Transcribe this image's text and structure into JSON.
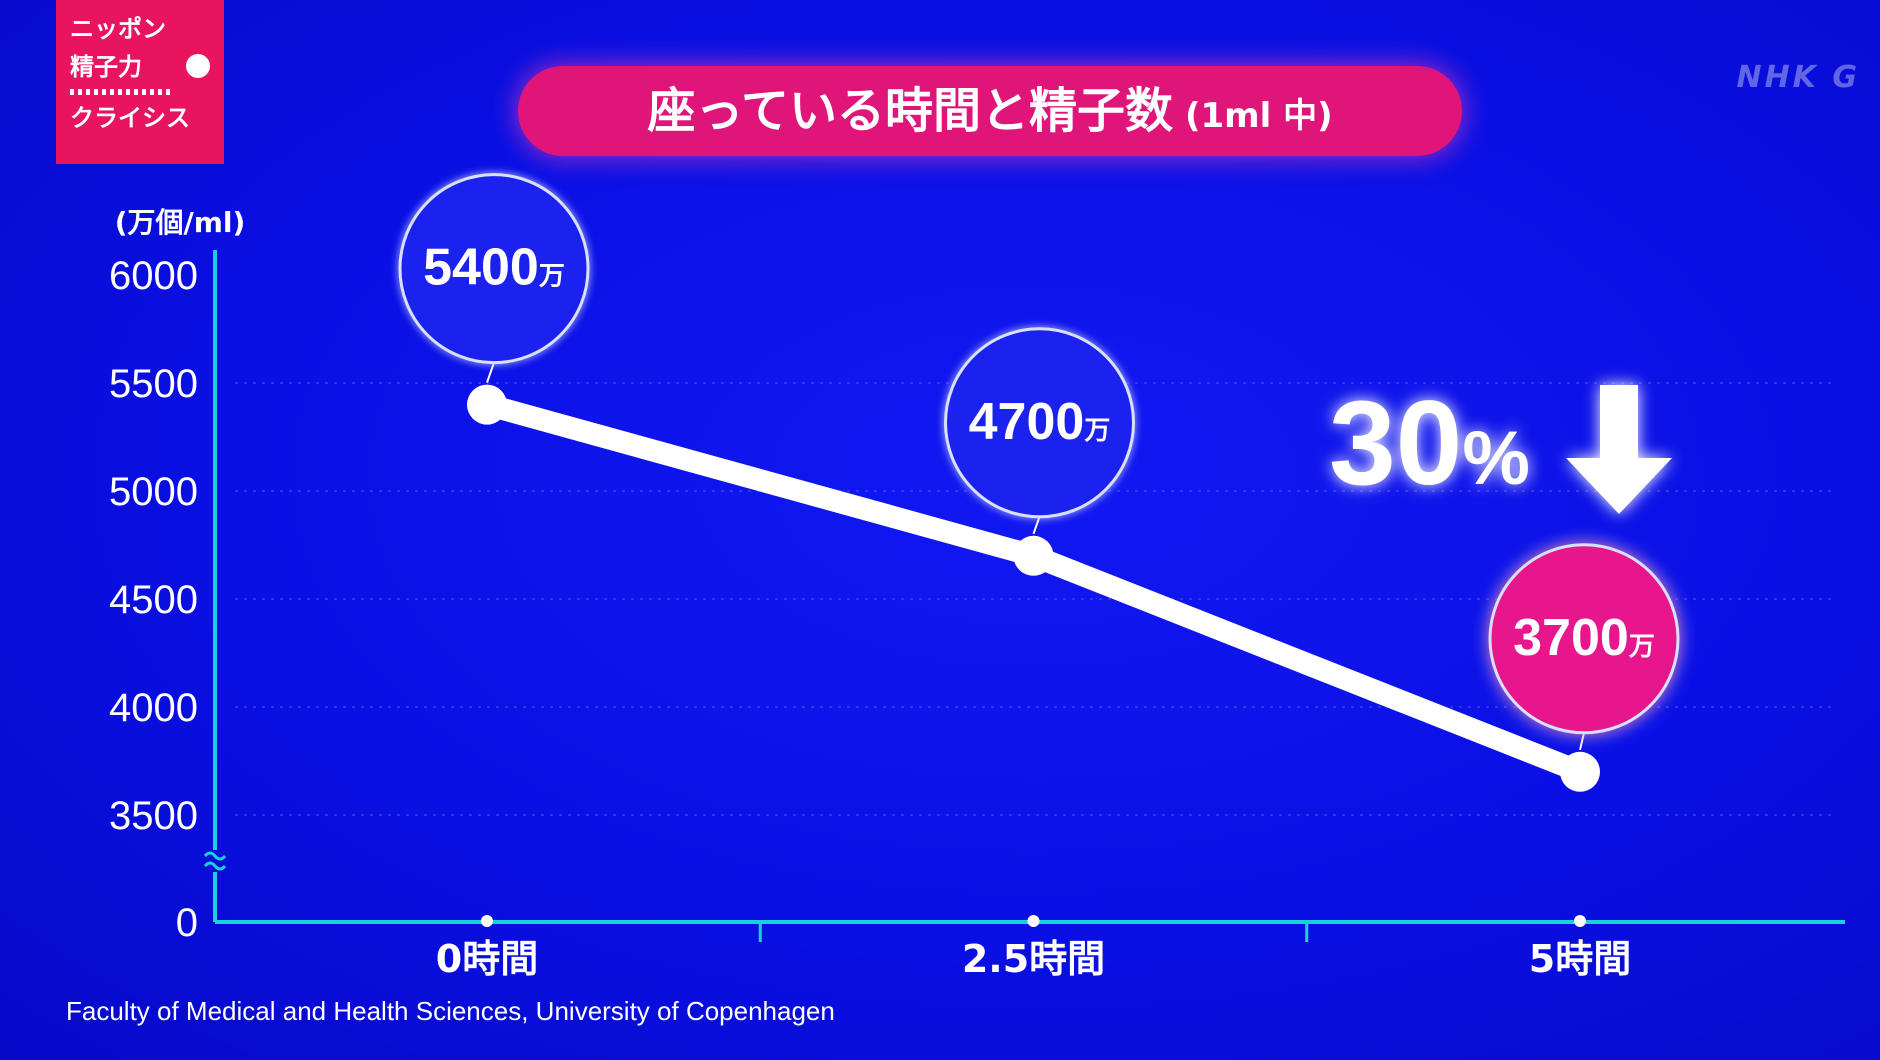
{
  "logo": {
    "line1": "ニッポン",
    "line2": "精子力",
    "line3": "クライシス"
  },
  "watermark": "NHK G",
  "title": {
    "main": "座っている時間と精子数",
    "sub": "(1ml 中)"
  },
  "source": "Faculty of Medical and Health Sciences, University of Copenhagen",
  "callout": {
    "text": "30%",
    "direction": "down"
  },
  "colors": {
    "background": "#0a10e4",
    "axis": "#17d3d9",
    "line": "#ffffff",
    "bubble_blue": "#1a22ee",
    "bubble_pink": "#e8148c",
    "title_pill": "#e0157a"
  },
  "chart_data": {
    "type": "line",
    "ylabel": "(万個/ml)",
    "xlabel": "",
    "y_ticks": [
      0,
      3500,
      4000,
      4500,
      5000,
      5500,
      6000
    ],
    "ylim": [
      3500,
      6000
    ],
    "y_axis_break": true,
    "grid": true,
    "x_ticks": [
      "0時間",
      "2.5時間",
      "5時間"
    ],
    "x_values": [
      0,
      2.5,
      5
    ],
    "y_values": [
      5400,
      4700,
      3700
    ],
    "point_labels": [
      "5400万",
      "4700万",
      "3700万"
    ],
    "highlight_index": 2
  }
}
